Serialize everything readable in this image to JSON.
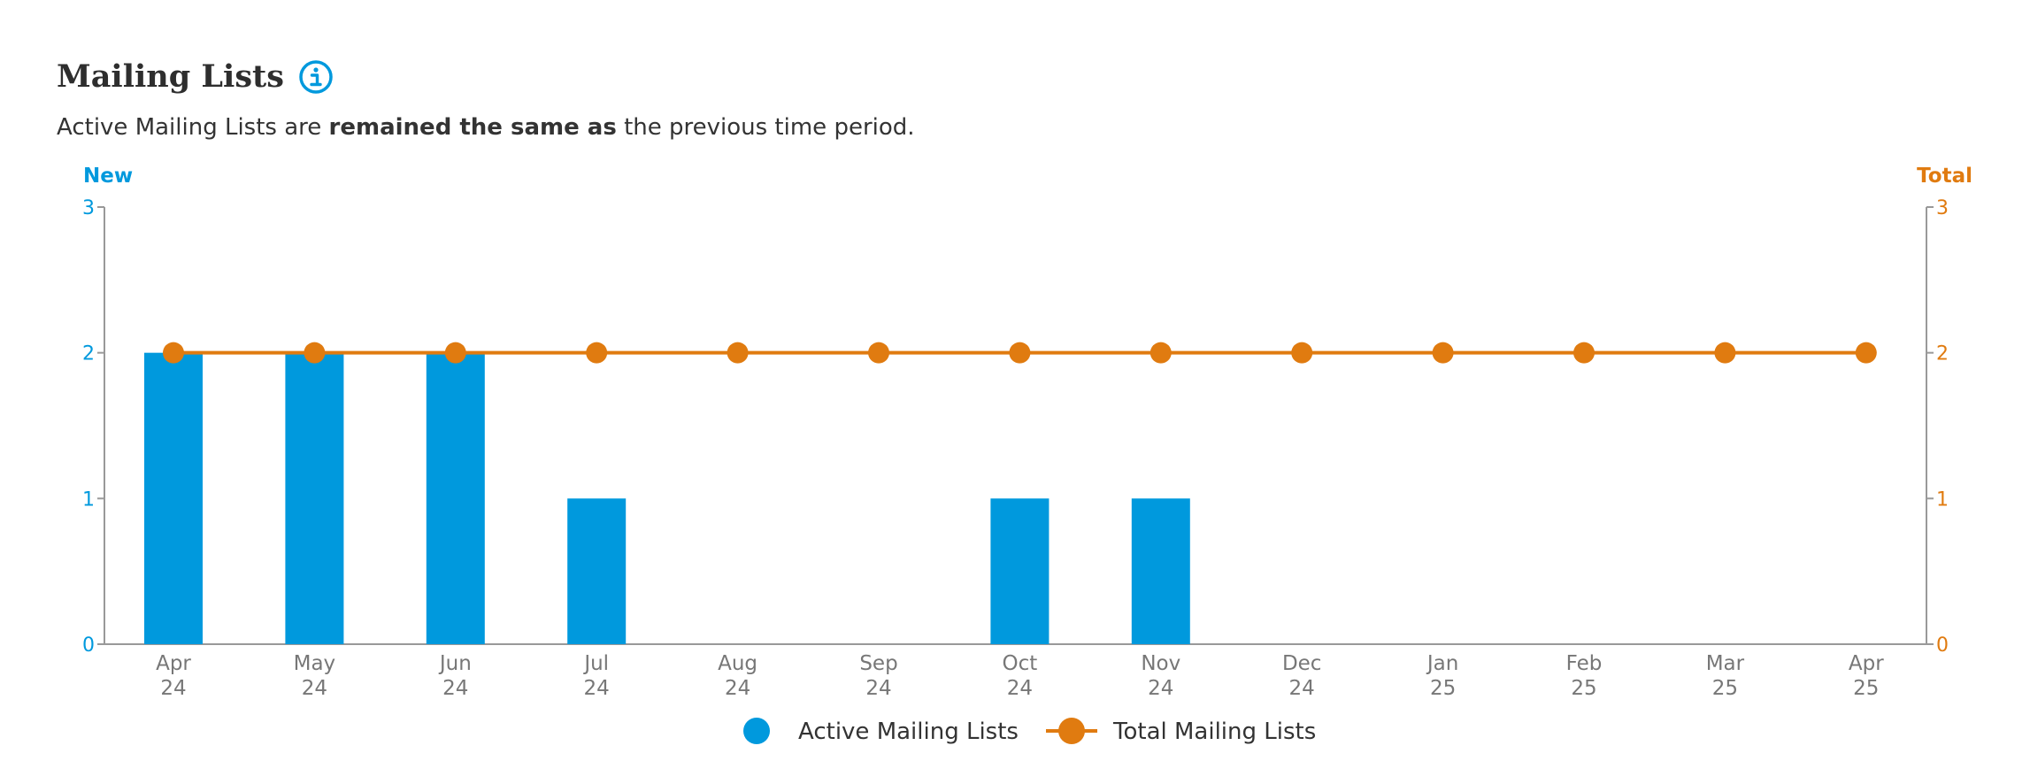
{
  "header": {
    "title": "Mailing Lists",
    "summary_prefix": "Active Mailing Lists are ",
    "summary_bold": "remained the same as",
    "summary_suffix": " the previous time period."
  },
  "colors": {
    "new": "#0099dd",
    "total": "#e07b10",
    "axis": "#999999"
  },
  "chart_data": {
    "type": "bar",
    "categories": [
      [
        "Apr",
        "24"
      ],
      [
        "May",
        "24"
      ],
      [
        "Jun",
        "24"
      ],
      [
        "Jul",
        "24"
      ],
      [
        "Aug",
        "24"
      ],
      [
        "Sep",
        "24"
      ],
      [
        "Oct",
        "24"
      ],
      [
        "Nov",
        "24"
      ],
      [
        "Dec",
        "24"
      ],
      [
        "Jan",
        "25"
      ],
      [
        "Feb",
        "25"
      ],
      [
        "Mar",
        "25"
      ],
      [
        "Apr",
        "25"
      ]
    ],
    "series": [
      {
        "name": "Active Mailing Lists",
        "type": "bar",
        "axis": "left",
        "values": [
          2,
          2,
          2,
          1,
          0,
          0,
          1,
          1,
          0,
          0,
          0,
          0,
          0
        ]
      },
      {
        "name": "Total Mailing Lists",
        "type": "line",
        "axis": "right",
        "values": [
          2,
          2,
          2,
          2,
          2,
          2,
          2,
          2,
          2,
          2,
          2,
          2,
          2
        ]
      }
    ],
    "y_left": {
      "label": "New",
      "ticks": [
        "0",
        "1",
        "2",
        "3"
      ],
      "range": [
        0,
        3
      ]
    },
    "y_right": {
      "label": "Total",
      "ticks": [
        "0",
        "1",
        "2",
        "3"
      ],
      "range": [
        0,
        3
      ]
    },
    "grid": false,
    "legend_position": "bottom-center"
  }
}
